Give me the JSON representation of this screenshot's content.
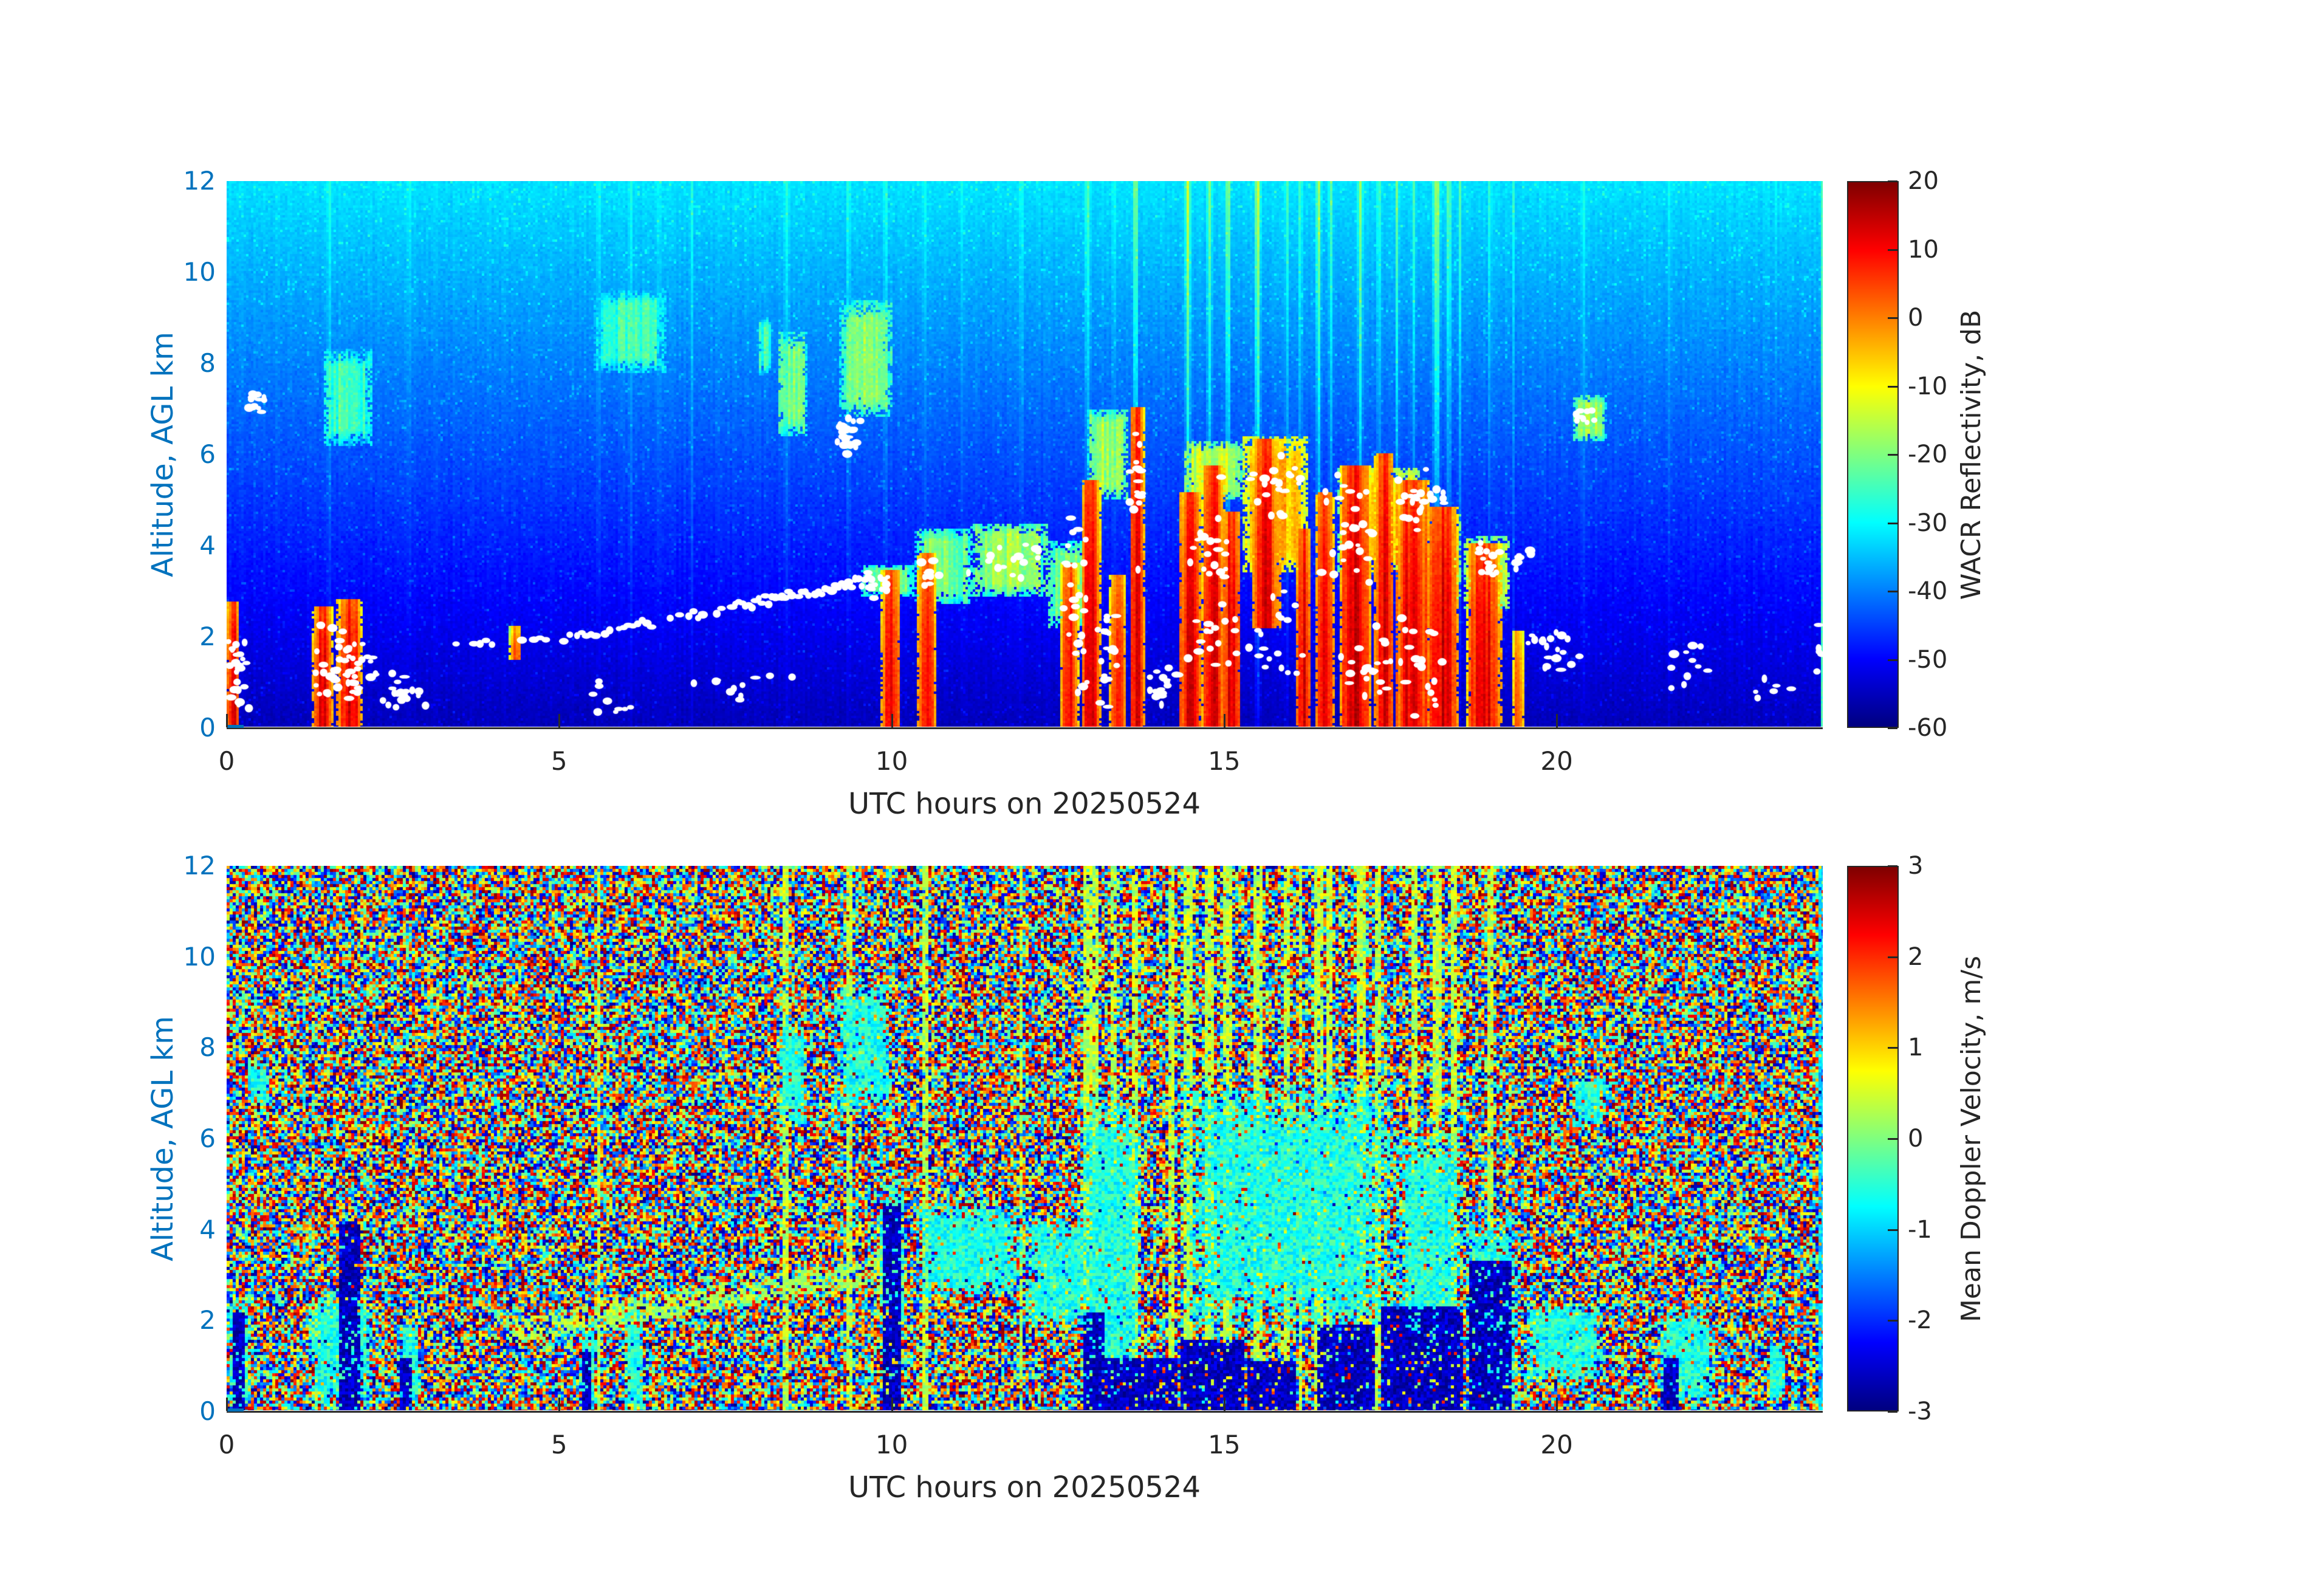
{
  "figure": {
    "background": "#ffffff",
    "axis_text_color": "#262626",
    "altitude_axis_color": "#0072BD",
    "colormap": "jet"
  },
  "top_panel": {
    "xlabel": "UTC hours on 20250524",
    "ylabel": "Altitude, AGL km",
    "x_ticks": [
      "0",
      "5",
      "10",
      "15",
      "20"
    ],
    "y_ticks": [
      "0",
      "2",
      "4",
      "6",
      "8",
      "10",
      "12"
    ],
    "colorbar": {
      "label": "WACR Reflectivity, dB",
      "tick_labels": [
        "20",
        "10",
        "0",
        "-10",
        "-20",
        "-30",
        "-40",
        "-50",
        "-60"
      ]
    }
  },
  "bottom_panel": {
    "xlabel": "UTC hours on 20250524",
    "ylabel": "Altitude, AGL km",
    "x_ticks": [
      "0",
      "5",
      "10",
      "15",
      "20"
    ],
    "y_ticks": [
      "0",
      "2",
      "4",
      "6",
      "8",
      "10",
      "12"
    ],
    "colorbar": {
      "label": "Mean Doppler Velocity, m/s",
      "tick_labels": [
        "3",
        "2",
        "1",
        "0",
        "-1",
        "-2",
        "-3"
      ]
    }
  },
  "chart_data": [
    {
      "type": "heatmap",
      "name": "WACR reflectivity time-height section",
      "xlabel": "UTC hours on 20250524",
      "ylabel": "Altitude, AGL km",
      "xlim": [
        0,
        24
      ],
      "ylim": [
        0,
        12
      ],
      "xticks": [
        0,
        5,
        10,
        15,
        20
      ],
      "yticks": [
        0,
        2,
        4,
        6,
        8,
        10,
        12
      ],
      "value_label": "WACR Reflectivity, dB",
      "value_range": [
        -60,
        20
      ],
      "colormap": "jet",
      "legend_position": "right-colorbar",
      "grid": false,
      "background_noise": {
        "surface_dB": -55.5,
        "lapse_dB_per_km": 1.95,
        "sigma_dB": 1.5,
        "speckle_fraction": 0.05,
        "speckle_boost_dB": 4
      },
      "bright_columns": [
        [
          1.55,
          0.05,
          0.3
        ],
        [
          2.75,
          0.04,
          0.25
        ],
        [
          5.6,
          0.05,
          0.3
        ],
        [
          6.07,
          0.04,
          0.25
        ],
        [
          6.5,
          0.04,
          0.22
        ],
        [
          7.0,
          0.03,
          0.2
        ],
        [
          8.42,
          0.05,
          0.35
        ],
        [
          9.35,
          0.04,
          0.3
        ],
        [
          9.9,
          0.05,
          0.35
        ],
        [
          10.5,
          0.05,
          0.35
        ],
        [
          11.05,
          0.04,
          0.3
        ],
        [
          11.95,
          0.04,
          0.3
        ],
        [
          12.95,
          0.05,
          0.5
        ],
        [
          13.35,
          0.04,
          0.45
        ],
        [
          13.66,
          0.05,
          1
        ],
        [
          14.45,
          0.06,
          0.95
        ],
        [
          14.78,
          0.05,
          0.85
        ],
        [
          15.05,
          0.05,
          0.9
        ],
        [
          15.5,
          0.06,
          1
        ],
        [
          15.95,
          0.04,
          0.55
        ],
        [
          16.15,
          0.04,
          0.5
        ],
        [
          16.42,
          0.05,
          0.95
        ],
        [
          16.6,
          0.04,
          0.6
        ],
        [
          17.05,
          0.05,
          0.9
        ],
        [
          17.32,
          0.04,
          0.7
        ],
        [
          17.6,
          0.04,
          0.5
        ],
        [
          17.85,
          0.04,
          0.45
        ],
        [
          18.2,
          0.07,
          1
        ],
        [
          18.38,
          0.04,
          0.6
        ],
        [
          18.55,
          0.03,
          0.5
        ],
        [
          19.0,
          0.04,
          0.4
        ],
        [
          19.35,
          0.03,
          0.35
        ],
        [
          20.4,
          0.04,
          0.3
        ],
        [
          21.7,
          0.03,
          0.25
        ],
        [
          23.3,
          0.03,
          0.2
        ]
      ],
      "precip_cells": [
        [
          0.02,
          0.18,
          0,
          2.6,
          0.9
        ],
        [
          1.32,
          1.58,
          0,
          2.5,
          0.85
        ],
        [
          1.7,
          2.0,
          0,
          2.7,
          1
        ],
        [
          4.27,
          4.42,
          1.5,
          2.1,
          0.5
        ],
        [
          9.87,
          10.1,
          0,
          3.3,
          0.95
        ],
        [
          10.42,
          10.65,
          0,
          3.7,
          0.9
        ],
        [
          12.55,
          12.8,
          0,
          3.5,
          0.75
        ],
        [
          12.88,
          13.12,
          0,
          5.3,
          1
        ],
        [
          13.3,
          13.5,
          0,
          3.2,
          0.85
        ],
        [
          13.6,
          13.78,
          0,
          6.9,
          0.95
        ],
        [
          14.35,
          14.62,
          0,
          5.0,
          1
        ],
        [
          14.7,
          14.97,
          0,
          5.6,
          1
        ],
        [
          15.0,
          15.22,
          0,
          4.6,
          0.95
        ],
        [
          15.45,
          15.8,
          2.2,
          6.2,
          0.85
        ],
        [
          16.1,
          16.28,
          0,
          4.2,
          0.9
        ],
        [
          16.4,
          16.62,
          0,
          5.0,
          1
        ],
        [
          16.78,
          17.18,
          0,
          5.6,
          1
        ],
        [
          17.28,
          17.52,
          0,
          5.9,
          0.95
        ],
        [
          17.62,
          18.05,
          0,
          5.3,
          1
        ],
        [
          18.1,
          18.48,
          0,
          4.7,
          0.95
        ],
        [
          18.7,
          19.12,
          0,
          3.9,
          0.9
        ],
        [
          19.35,
          19.5,
          0,
          2.0,
          0.45
        ]
      ],
      "cloud_patches": [
        [
          1.45,
          2.2,
          6.2,
          8.3,
          -26
        ],
        [
          5.5,
          6.6,
          7.8,
          9.6,
          -26
        ],
        [
          8.0,
          8.2,
          7.8,
          9.0,
          -26
        ],
        [
          8.3,
          8.72,
          6.4,
          8.7,
          -20
        ],
        [
          9.2,
          10.0,
          6.8,
          9.4,
          -20
        ],
        [
          9.55,
          10.35,
          2.9,
          3.6,
          -23
        ],
        [
          10.35,
          11.2,
          2.7,
          4.4,
          -21
        ],
        [
          11.2,
          12.35,
          2.9,
          4.5,
          -18
        ],
        [
          12.35,
          12.95,
          2.2,
          4.1,
          -21
        ],
        [
          12.95,
          13.55,
          5.0,
          7.0,
          -18
        ],
        [
          14.4,
          15.3,
          5.0,
          6.3,
          -15
        ],
        [
          15.28,
          16.25,
          3.4,
          6.4,
          -6
        ],
        [
          16.7,
          17.95,
          3.4,
          5.7,
          -9
        ],
        [
          18.05,
          18.55,
          2.8,
          4.7,
          -12
        ],
        [
          18.6,
          19.3,
          2.6,
          4.2,
          -14
        ],
        [
          20.25,
          20.75,
          6.3,
          7.3,
          -19
        ]
      ],
      "cloud_base_line_white": [
        [
          3.45,
          1.85,
          5.2,
          2.0,
          0.09,
          0.5
        ],
        [
          5.2,
          2.05,
          7.6,
          2.6,
          0.07,
          0.75
        ],
        [
          7.6,
          2.65,
          9.75,
          3.25,
          0.05,
          0.95
        ]
      ],
      "liquid_dot_regions_white": [
        [
          0.02,
          0.35,
          0.1,
          2.3,
          26
        ],
        [
          0.3,
          0.65,
          6.8,
          7.6,
          13
        ],
        [
          1.05,
          2.55,
          0.2,
          2.5,
          55
        ],
        [
          2.2,
          3.2,
          0.35,
          1.3,
          20
        ],
        [
          5.35,
          6.45,
          0.3,
          1.1,
          9
        ],
        [
          6.9,
          8.7,
          0.5,
          1.3,
          11
        ],
        [
          9.1,
          9.55,
          5.9,
          7.0,
          26
        ],
        [
          9.55,
          10.1,
          2.8,
          3.5,
          12
        ],
        [
          10.3,
          10.75,
          2.9,
          3.8,
          11
        ],
        [
          10.9,
          12.5,
          3.2,
          4.2,
          16
        ],
        [
          12.55,
          13.0,
          0.2,
          5.2,
          26
        ],
        [
          13.05,
          13.5,
          0.2,
          3.0,
          18
        ],
        [
          13.55,
          13.8,
          3.0,
          7.0,
          15
        ],
        [
          13.85,
          14.35,
          0.3,
          1.6,
          16
        ],
        [
          14.35,
          15.25,
          0.5,
          6.0,
          38
        ],
        [
          15.3,
          16.25,
          4.3,
          6.2,
          24
        ],
        [
          15.35,
          16.2,
          0.5,
          3.5,
          18
        ],
        [
          16.35,
          17.4,
          3.0,
          5.6,
          28
        ],
        [
          16.5,
          18.55,
          0.2,
          2.6,
          42
        ],
        [
          17.45,
          18.4,
          4.2,
          5.7,
          24
        ],
        [
          18.6,
          19.25,
          3.2,
          4.1,
          14
        ],
        [
          19.2,
          19.65,
          3.3,
          4.0,
          9
        ],
        [
          19.4,
          20.65,
          0.8,
          2.4,
          20
        ],
        [
          20.25,
          20.6,
          6.3,
          7.2,
          9
        ],
        [
          21.6,
          22.4,
          0.5,
          2.2,
          11
        ],
        [
          22.9,
          23.6,
          0.6,
          1.4,
          6
        ],
        [
          23.8,
          24.0,
          0.8,
          2.9,
          5
        ]
      ]
    },
    {
      "type": "heatmap",
      "name": "Mean Doppler velocity time-height section",
      "xlabel": "UTC hours on 20250524",
      "ylabel": "Altitude, AGL km",
      "xlim": [
        0,
        24
      ],
      "ylim": [
        0,
        12
      ],
      "xticks": [
        0,
        5,
        10,
        15,
        20
      ],
      "yticks": [
        0,
        2,
        4,
        6,
        8,
        10,
        12
      ],
      "value_label": "Mean Doppler Velocity, m/s",
      "value_range": [
        -3,
        3
      ],
      "colormap": "jet",
      "legend_position": "right-colorbar",
      "grid": false,
      "background_noise": {
        "distribution": "uniform",
        "min": -3,
        "max": 3
      },
      "updraft_columns": [
        [
          5.6,
          0.04,
          0.3
        ],
        [
          8.42,
          0.05,
          0.4
        ],
        [
          9.35,
          0.04,
          0.3
        ],
        [
          10.5,
          0.04,
          0.3
        ],
        [
          11.95,
          0.04,
          0.3
        ],
        [
          12.95,
          0.05,
          0.7
        ],
        [
          13.05,
          0.04,
          0.5
        ],
        [
          13.35,
          0.04,
          0.6
        ],
        [
          13.66,
          0.06,
          1
        ],
        [
          14.2,
          0.03,
          0.5
        ],
        [
          14.45,
          0.07,
          1
        ],
        [
          14.78,
          0.06,
          0.9
        ],
        [
          15.05,
          0.06,
          0.95
        ],
        [
          15.5,
          0.07,
          1
        ],
        [
          15.95,
          0.05,
          0.6
        ],
        [
          16.15,
          0.04,
          0.5
        ],
        [
          16.42,
          0.06,
          1
        ],
        [
          16.6,
          0.05,
          0.7
        ],
        [
          17.05,
          0.06,
          0.95
        ],
        [
          17.32,
          0.05,
          0.8
        ],
        [
          17.85,
          0.04,
          0.5
        ],
        [
          18.2,
          0.08,
          1
        ],
        [
          18.45,
          0.05,
          0.7
        ],
        [
          19.0,
          0.04,
          0.4
        ]
      ],
      "cloud_regions": [
        [
          0.02,
          0.35,
          0,
          2.5
        ],
        [
          0.3,
          0.65,
          6.7,
          7.7
        ],
        [
          1.25,
          2.2,
          0,
          2.6
        ],
        [
          2.6,
          2.9,
          0,
          2.0
        ],
        [
          5.3,
          5.55,
          0,
          1.9
        ],
        [
          6.0,
          6.25,
          0,
          2.3
        ],
        [
          8.3,
          8.72,
          6.3,
          8.7
        ],
        [
          9.2,
          10.0,
          6.6,
          9.4
        ],
        [
          9.8,
          10.2,
          2.0,
          5.0
        ],
        [
          10.35,
          12.0,
          2.5,
          4.6
        ],
        [
          12.0,
          13.0,
          1.8,
          4.3
        ],
        [
          12.85,
          13.75,
          0,
          7.0
        ],
        [
          14.35,
          17.6,
          1.8,
          7.2
        ],
        [
          17.6,
          18.6,
          1.2,
          6.2
        ],
        [
          18.65,
          19.4,
          0,
          4.4
        ],
        [
          19.5,
          20.7,
          0.6,
          2.4
        ],
        [
          20.25,
          20.75,
          6.3,
          7.4
        ],
        [
          21.55,
          22.35,
          0.2,
          2.3
        ],
        [
          23.2,
          23.45,
          0.2,
          1.5
        ]
      ],
      "downdraft_regions": [
        [
          0.1,
          0.28,
          0,
          2.2
        ],
        [
          1.68,
          2.0,
          0,
          4.2
        ],
        [
          2.6,
          2.78,
          0,
          1.2
        ],
        [
          5.35,
          5.5,
          0,
          1.4
        ],
        [
          9.85,
          10.12,
          0,
          4.6
        ],
        [
          12.9,
          13.2,
          0,
          2.2
        ],
        [
          13.2,
          14.3,
          0,
          1.2
        ],
        [
          14.35,
          15.3,
          0,
          1.6
        ],
        [
          15.35,
          16.1,
          0,
          1.1
        ],
        [
          16.4,
          17.25,
          0,
          1.9
        ],
        [
          17.35,
          18.6,
          0,
          2.3
        ],
        [
          18.7,
          19.3,
          0,
          3.3
        ],
        [
          21.6,
          21.85,
          0,
          1.2
        ]
      ],
      "green_blobs": [
        [
          1.3,
          1.7,
          1.2,
          2.4
        ],
        [
          9.82,
          10.18,
          2.3,
          3.7
        ]
      ],
      "cloud_base_line_green": [
        [
          4.2,
          1.75,
          9.8,
          3.1
        ]
      ]
    }
  ]
}
